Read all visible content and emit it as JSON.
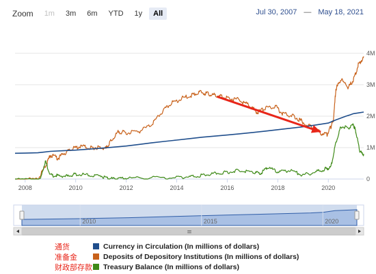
{
  "toolbar": {
    "zoom_label": "Zoom",
    "buttons": [
      {
        "label": "1m",
        "state": "disabled"
      },
      {
        "label": "3m",
        "state": "normal"
      },
      {
        "label": "6m",
        "state": "normal"
      },
      {
        "label": "YTD",
        "state": "normal"
      },
      {
        "label": "1y",
        "state": "normal"
      },
      {
        "label": "All",
        "state": "active"
      }
    ],
    "from_date": "Jul 30, 2007",
    "separator": "—",
    "to_date": "May 18, 2021"
  },
  "chart_data": {
    "type": "line",
    "x_ticks": [
      "2008",
      "2010",
      "2012",
      "2014",
      "2016",
      "2018",
      "2020"
    ],
    "y_ticks": [
      "0",
      "1M",
      "2M",
      "3M",
      "4M"
    ],
    "xlim": [
      2007.6,
      2021.4
    ],
    "ylim": [
      0,
      4000000
    ],
    "grid": true,
    "series": [
      {
        "name": "Currency in Circulation (In millions of dollars)",
        "color": "#1f4e8c",
        "x": [
          2007.6,
          2008.0,
          2008.5,
          2009.0,
          2010.0,
          2011.0,
          2012.0,
          2013.0,
          2014.0,
          2015.0,
          2016.0,
          2017.0,
          2018.0,
          2019.0,
          2020.0,
          2020.3,
          2020.7,
          2021.0,
          2021.4
        ],
        "y": [
          820000,
          825000,
          835000,
          880000,
          920000,
          980000,
          1050000,
          1150000,
          1240000,
          1330000,
          1400000,
          1480000,
          1570000,
          1660000,
          1780000,
          1880000,
          2000000,
          2080000,
          2130000
        ]
      },
      {
        "name": "Deposits of Depository Institutions (In millions of dollars)",
        "color": "#c8611a",
        "x": [
          2007.6,
          2008.5,
          2008.8,
          2009.0,
          2009.3,
          2009.6,
          2009.9,
          2010.2,
          2010.6,
          2010.9,
          2011.2,
          2011.4,
          2011.7,
          2012.0,
          2012.5,
          2013.0,
          2013.4,
          2013.8,
          2014.2,
          2014.6,
          2014.9,
          2015.2,
          2015.5,
          2015.8,
          2016.1,
          2016.5,
          2016.9,
          2017.2,
          2017.5,
          2017.9,
          2018.2,
          2018.6,
          2018.9,
          2019.3,
          2019.7,
          2019.95,
          2020.1,
          2020.2,
          2020.3,
          2020.5,
          2020.8,
          2021.0,
          2021.2,
          2021.4
        ],
        "y": [
          5000,
          15000,
          450000,
          800000,
          700000,
          880000,
          1000000,
          1080000,
          1020000,
          1050000,
          1000000,
          1250000,
          1550000,
          1500000,
          1550000,
          1750000,
          2150000,
          2450000,
          2600000,
          2700000,
          2800000,
          2750000,
          2700000,
          2650000,
          2600000,
          2550000,
          2350000,
          2150000,
          2300000,
          2350000,
          2100000,
          2050000,
          1900000,
          1700000,
          1500000,
          1450000,
          1700000,
          1900000,
          2900000,
          3200000,
          2950000,
          3200000,
          3700000,
          3900000
        ]
      },
      {
        "name": "Treasury Balance (In millions of dollars)",
        "color": "#3e8a17",
        "x": [
          2007.6,
          2008.6,
          2008.8,
          2009.0,
          2009.3,
          2009.7,
          2010.0,
          2010.5,
          2011.0,
          2011.3,
          2011.6,
          2012.0,
          2013.0,
          2014.0,
          2014.5,
          2015.0,
          2015.5,
          2016.0,
          2016.5,
          2017.0,
          2017.3,
          2017.6,
          2018.0,
          2018.5,
          2019.0,
          2019.5,
          2019.9,
          2020.1,
          2020.3,
          2020.5,
          2020.8,
          2021.0,
          2021.1,
          2021.25,
          2021.4
        ],
        "y": [
          0,
          5000,
          600000,
          150000,
          130000,
          120000,
          180000,
          150000,
          120000,
          50000,
          20000,
          50000,
          60000,
          80000,
          100000,
          140000,
          200000,
          250000,
          300000,
          250000,
          200000,
          400000,
          250000,
          300000,
          150000,
          250000,
          350000,
          400000,
          1200000,
          1700000,
          1650000,
          1750000,
          1500000,
          900000,
          800000
        ]
      }
    ]
  },
  "navigator": {
    "labels": [
      "2010",
      "2015",
      "2020"
    ],
    "x_positions": [
      2010,
      2015,
      2020
    ],
    "series_x": [
      2007.6,
      2010.0,
      2012.0,
      2014.0,
      2016.0,
      2018.0,
      2019.5,
      2020.0,
      2020.5,
      2021.0,
      2021.4
    ],
    "series_y": [
      820000,
      920000,
      1050000,
      1240000,
      1400000,
      1570000,
      1700000,
      1780000,
      2000000,
      2080000,
      2130000
    ],
    "scrollbar_icon": "≡"
  },
  "legend": {
    "annotations": [
      "通货",
      "准备金",
      "财政部存款"
    ],
    "items": [
      {
        "label": "Currency in Circulation (In millions of dollars)",
        "color": "#1f4e8c"
      },
      {
        "label": "Deposits of Depository Institutions (In millions of dollars)",
        "color": "#c8611a"
      },
      {
        "label": "Treasury Balance (In millions of dollars)",
        "color": "#3e8a17"
      }
    ]
  },
  "annotation": {
    "arrow_color": "#e8261a",
    "from_x": 2015.6,
    "from_y": 2620000,
    "to_x": 2019.7,
    "to_y": 1500000
  }
}
